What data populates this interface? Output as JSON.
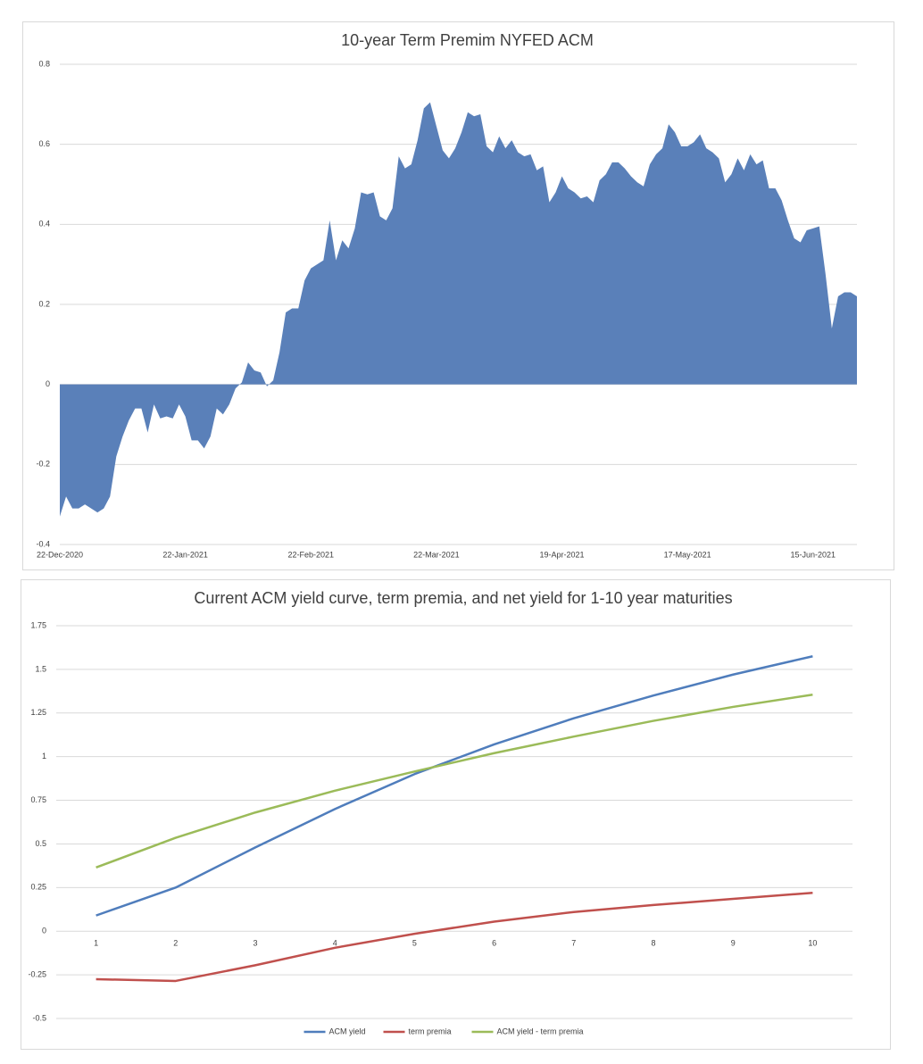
{
  "chart_data": [
    {
      "type": "area",
      "title": "10-year Term Premim  NYFED ACM",
      "color": "#5a80b9",
      "grid": true,
      "ylim": [
        -0.4,
        0.8
      ],
      "yticks": [
        -0.4,
        -0.2,
        0,
        0.2,
        0.4,
        0.6,
        0.8
      ],
      "categories": [
        "22-Dec-2020",
        null,
        null,
        null,
        null,
        null,
        null,
        null,
        null,
        null,
        null,
        null,
        null,
        null,
        null,
        null,
        null,
        null,
        null,
        null,
        "22-Jan-2021",
        null,
        null,
        null,
        null,
        null,
        null,
        null,
        null,
        null,
        null,
        null,
        null,
        null,
        null,
        null,
        null,
        null,
        null,
        null,
        "22-Feb-2021",
        null,
        null,
        null,
        null,
        null,
        null,
        null,
        null,
        null,
        null,
        null,
        null,
        null,
        null,
        null,
        null,
        null,
        null,
        null,
        "22-Mar-2021",
        null,
        null,
        null,
        null,
        null,
        null,
        null,
        null,
        null,
        null,
        null,
        null,
        null,
        null,
        null,
        null,
        null,
        null,
        null,
        "19-Apr-2021",
        null,
        null,
        null,
        null,
        null,
        null,
        null,
        null,
        null,
        null,
        null,
        null,
        null,
        null,
        null,
        null,
        null,
        null,
        null,
        "17-May-2021",
        null,
        null,
        null,
        null,
        null,
        null,
        null,
        null,
        null,
        null,
        null,
        null,
        null,
        null,
        null,
        null,
        null,
        null,
        null,
        "15-Jun-2021",
        null,
        null,
        null,
        null,
        null,
        null,
        null
      ],
      "values": [
        -0.33,
        -0.28,
        -0.31,
        -0.31,
        -0.3,
        -0.31,
        -0.32,
        -0.31,
        -0.28,
        -0.18,
        -0.13,
        -0.09,
        -0.06,
        -0.06,
        -0.12,
        -0.05,
        -0.085,
        -0.08,
        -0.085,
        -0.05,
        -0.08,
        -0.14,
        -0.14,
        -0.16,
        -0.13,
        -0.06,
        -0.075,
        -0.05,
        -0.01,
        0.005,
        0.055,
        0.035,
        0.03,
        -0.005,
        0.01,
        0.08,
        0.18,
        0.19,
        0.19,
        0.26,
        0.29,
        0.3,
        0.31,
        0.41,
        0.31,
        0.36,
        0.34,
        0.39,
        0.48,
        0.475,
        0.48,
        0.42,
        0.41,
        0.44,
        0.57,
        0.54,
        0.55,
        0.61,
        0.69,
        0.705,
        0.645,
        0.585,
        0.565,
        0.59,
        0.63,
        0.68,
        0.67,
        0.675,
        0.595,
        0.58,
        0.62,
        0.59,
        0.61,
        0.58,
        0.57,
        0.575,
        0.535,
        0.545,
        0.455,
        0.48,
        0.52,
        0.49,
        0.48,
        0.465,
        0.47,
        0.455,
        0.51,
        0.525,
        0.555,
        0.555,
        0.54,
        0.52,
        0.505,
        0.495,
        0.55,
        0.575,
        0.59,
        0.65,
        0.63,
        0.595,
        0.595,
        0.605,
        0.625,
        0.59,
        0.58,
        0.565,
        0.505,
        0.525,
        0.565,
        0.535,
        0.575,
        0.55,
        0.56,
        0.49,
        0.49,
        0.46,
        0.41,
        0.365,
        0.355,
        0.385,
        0.39,
        0.395,
        0.275,
        0.14,
        0.22,
        0.23,
        0.23,
        0.22
      ]
    },
    {
      "type": "line",
      "title": "Current ACM yield curve, term premia, and net yield for 1-10 year maturities",
      "grid": true,
      "legend": "bottom",
      "ylim": [
        -0.5,
        1.75
      ],
      "yticks": [
        -0.5,
        -0.25,
        0,
        0.25,
        0.5,
        0.75,
        1,
        1.25,
        1.5,
        1.75
      ],
      "categories": [
        1,
        2,
        3,
        4,
        5,
        6,
        7,
        8,
        9,
        10
      ],
      "series": [
        {
          "name": "ACM yield",
          "color": "#4f7dbc",
          "values": [
            0.09,
            0.25,
            0.48,
            0.7,
            0.9,
            1.07,
            1.22,
            1.35,
            1.47,
            1.575
          ]
        },
        {
          "name": "term premia",
          "color": "#c0504d",
          "values": [
            -0.275,
            -0.285,
            -0.195,
            -0.095,
            -0.015,
            0.055,
            0.11,
            0.15,
            0.185,
            0.22
          ]
        },
        {
          "name": "ACM yield - term premia",
          "color": "#9bbb59",
          "values": [
            0.365,
            0.535,
            0.68,
            0.805,
            0.915,
            1.02,
            1.115,
            1.205,
            1.285,
            1.355
          ]
        }
      ]
    }
  ]
}
